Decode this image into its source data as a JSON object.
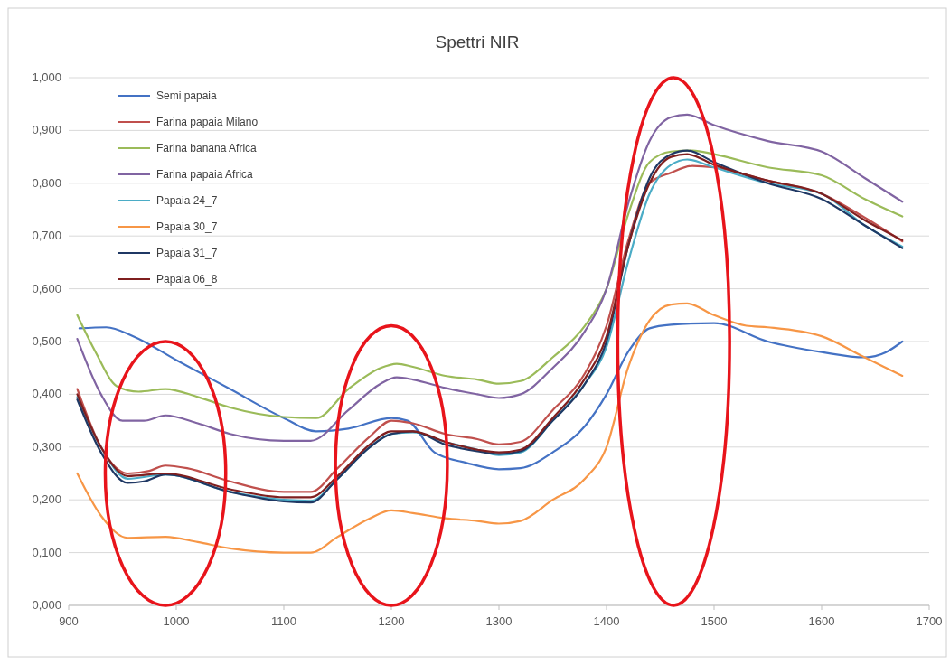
{
  "chart_data": {
    "type": "line",
    "title": "Spettri NIR",
    "xlim": [
      900,
      1700
    ],
    "xticks": [
      900,
      1000,
      1100,
      1200,
      1300,
      1400,
      1500,
      1600,
      1700
    ],
    "ylim": [
      0,
      1
    ],
    "yticks": [
      {
        "value": 0,
        "label": "0,000"
      },
      {
        "value": 0.1,
        "label": "0,100"
      },
      {
        "value": 0.2,
        "label": "0,200"
      },
      {
        "value": 0.3,
        "label": "0,300"
      },
      {
        "value": 0.4,
        "label": "0,400"
      },
      {
        "value": 0.5,
        "label": "0,500"
      },
      {
        "value": 0.6,
        "label": "0,600"
      },
      {
        "value": 0.7,
        "label": "0,700"
      },
      {
        "value": 0.8,
        "label": "0,800"
      },
      {
        "value": 0.9,
        "label": "0,900"
      },
      {
        "value": 1,
        "label": "1,000"
      }
    ],
    "grid": "y",
    "legend": "top left",
    "marker": "none",
    "line_style": "solid",
    "series": [
      {
        "name": "Semi papaia",
        "color": "#4472c4",
        "x": [
          910,
          935,
          960,
          1000,
          1050,
          1100,
          1130,
          1160,
          1200,
          1215,
          1240,
          1270,
          1300,
          1320,
          1350,
          1380,
          1400,
          1420,
          1440,
          1460,
          1500,
          1550,
          1600,
          1640,
          1660,
          1675
        ],
        "values": [
          0.525,
          0.527,
          0.51,
          0.465,
          0.41,
          0.355,
          0.33,
          0.335,
          0.355,
          0.35,
          0.29,
          0.27,
          0.258,
          0.26,
          0.29,
          0.34,
          0.4,
          0.48,
          0.525,
          0.532,
          0.535,
          0.5,
          0.48,
          0.47,
          0.48,
          0.5
        ]
      },
      {
        "name": "Farina papaia Milano",
        "color": "#c0504d",
        "x": [
          908,
          930,
          955,
          975,
          990,
          1010,
          1050,
          1100,
          1125,
          1150,
          1180,
          1200,
          1220,
          1250,
          1280,
          1300,
          1320,
          1350,
          1380,
          1400,
          1420,
          1440,
          1460,
          1480,
          1500,
          1550,
          1600,
          1640,
          1675
        ],
        "values": [
          0.41,
          0.3,
          0.25,
          0.255,
          0.265,
          0.26,
          0.235,
          0.215,
          0.215,
          0.26,
          0.32,
          0.35,
          0.345,
          0.325,
          0.315,
          0.305,
          0.31,
          0.37,
          0.44,
          0.53,
          0.69,
          0.8,
          0.82,
          0.833,
          0.83,
          0.805,
          0.78,
          0.735,
          0.69
        ]
      },
      {
        "name": "Farina banana Africa",
        "color": "#9bbb59",
        "x": [
          908,
          925,
          945,
          965,
          990,
          1020,
          1050,
          1100,
          1130,
          1160,
          1190,
          1205,
          1220,
          1250,
          1280,
          1300,
          1320,
          1350,
          1380,
          1400,
          1420,
          1440,
          1460,
          1480,
          1500,
          1550,
          1600,
          1640,
          1675
        ],
        "values": [
          0.55,
          0.48,
          0.415,
          0.405,
          0.41,
          0.395,
          0.375,
          0.357,
          0.355,
          0.41,
          0.45,
          0.458,
          0.452,
          0.435,
          0.428,
          0.42,
          0.425,
          0.47,
          0.53,
          0.6,
          0.74,
          0.84,
          0.86,
          0.862,
          0.855,
          0.83,
          0.815,
          0.77,
          0.737
        ]
      },
      {
        "name": "Farina papaia Africa",
        "color": "#8064a2",
        "x": [
          908,
          930,
          950,
          970,
          990,
          1020,
          1050,
          1100,
          1125,
          1160,
          1190,
          1205,
          1220,
          1250,
          1280,
          1300,
          1320,
          1350,
          1380,
          1400,
          1420,
          1440,
          1460,
          1475,
          1500,
          1550,
          1600,
          1640,
          1675
        ],
        "values": [
          0.505,
          0.4,
          0.35,
          0.35,
          0.36,
          0.345,
          0.325,
          0.312,
          0.312,
          0.37,
          0.42,
          0.432,
          0.428,
          0.412,
          0.4,
          0.393,
          0.4,
          0.45,
          0.52,
          0.6,
          0.76,
          0.88,
          0.925,
          0.93,
          0.91,
          0.88,
          0.86,
          0.81,
          0.765
        ]
      },
      {
        "name": "Papaia 24_7",
        "color": "#4bacc6",
        "x": [
          908,
          930,
          955,
          990,
          1050,
          1100,
          1125,
          1150,
          1180,
          1200,
          1220,
          1250,
          1280,
          1300,
          1320,
          1350,
          1380,
          1400,
          1420,
          1440,
          1460,
          1475,
          1500,
          1550,
          1600,
          1640,
          1675
        ],
        "values": [
          0.395,
          0.3,
          0.24,
          0.248,
          0.215,
          0.2,
          0.198,
          0.24,
          0.3,
          0.325,
          0.328,
          0.31,
          0.295,
          0.285,
          0.29,
          0.35,
          0.42,
          0.49,
          0.65,
          0.78,
          0.835,
          0.845,
          0.83,
          0.8,
          0.78,
          0.72,
          0.68
        ]
      },
      {
        "name": "Papaia 30_7",
        "color": "#f79646",
        "x": [
          908,
          930,
          955,
          990,
          1020,
          1050,
          1100,
          1125,
          1150,
          1180,
          1200,
          1220,
          1250,
          1280,
          1300,
          1320,
          1350,
          1380,
          1400,
          1420,
          1440,
          1460,
          1475,
          1500,
          1530,
          1550,
          1600,
          1640,
          1675
        ],
        "values": [
          0.25,
          0.17,
          0.128,
          0.13,
          0.12,
          0.108,
          0.1,
          0.1,
          0.13,
          0.165,
          0.18,
          0.175,
          0.165,
          0.16,
          0.155,
          0.16,
          0.2,
          0.24,
          0.3,
          0.45,
          0.54,
          0.57,
          0.572,
          0.55,
          0.53,
          0.527,
          0.51,
          0.47,
          0.435
        ]
      },
      {
        "name": "Papaia 31_7",
        "color": "#1f3864",
        "x": [
          908,
          930,
          955,
          970,
          990,
          1050,
          1100,
          1125,
          1150,
          1180,
          1200,
          1220,
          1250,
          1280,
          1300,
          1320,
          1350,
          1380,
          1400,
          1420,
          1440,
          1460,
          1475,
          1500,
          1550,
          1600,
          1640,
          1675
        ],
        "values": [
          0.39,
          0.29,
          0.232,
          0.235,
          0.248,
          0.215,
          0.197,
          0.195,
          0.24,
          0.3,
          0.325,
          0.33,
          0.305,
          0.292,
          0.287,
          0.292,
          0.35,
          0.42,
          0.5,
          0.68,
          0.81,
          0.855,
          0.862,
          0.84,
          0.8,
          0.77,
          0.72,
          0.677
        ]
      },
      {
        "name": "Papaia 06_8",
        "color": "#7f1f1f",
        "x": [
          908,
          930,
          955,
          990,
          1050,
          1100,
          1125,
          1150,
          1180,
          1200,
          1220,
          1250,
          1280,
          1300,
          1320,
          1350,
          1380,
          1400,
          1420,
          1440,
          1460,
          1475,
          1500,
          1550,
          1600,
          1640,
          1675
        ],
        "values": [
          0.4,
          0.3,
          0.245,
          0.25,
          0.22,
          0.205,
          0.205,
          0.245,
          0.305,
          0.33,
          0.33,
          0.31,
          0.295,
          0.29,
          0.295,
          0.355,
          0.43,
          0.51,
          0.68,
          0.8,
          0.85,
          0.855,
          0.835,
          0.805,
          0.78,
          0.73,
          0.692
        ]
      }
    ]
  }
}
